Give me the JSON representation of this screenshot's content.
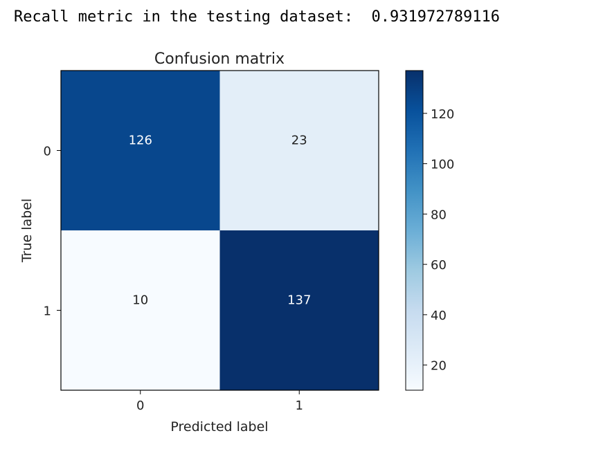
{
  "output": {
    "text": "Recall metric in the testing dataset:  0.931972789116"
  },
  "chart_data": {
    "type": "heatmap",
    "title": "Confusion matrix",
    "xlabel": "Predicted label",
    "ylabel": "True label",
    "x_ticks": [
      "0",
      "1"
    ],
    "y_ticks": [
      "0",
      "1"
    ],
    "matrix": [
      [
        126,
        23
      ],
      [
        10,
        137
      ]
    ],
    "colormap": "Blues",
    "colorbar": {
      "range": [
        10,
        137
      ],
      "ticks": [
        20,
        40,
        60,
        80,
        100,
        120
      ]
    },
    "colors": {
      "low": "#f7fbff",
      "high": "#08306b",
      "text_dark": "#222222",
      "text_light": "#ffffff"
    }
  }
}
